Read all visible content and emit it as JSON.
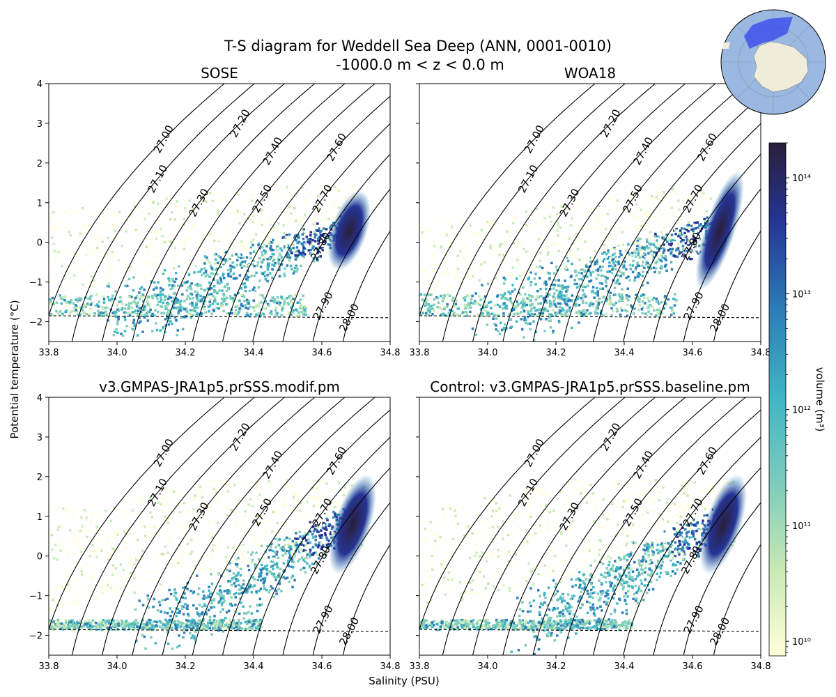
{
  "figure": {
    "title_line1": "T-S diagram for Weddell Sea Deep (ANN, 0001-0010)",
    "title_line2": "-1000.0 m < z < 0.0 m",
    "xlabel": "Salinity (PSU)",
    "ylabel": "Potential temperature (°C)",
    "colorbar_label": "volume (m³)",
    "colors": {
      "ocean": "#9bb8e0",
      "land": "#efecd9",
      "region": "#3344ee",
      "freezing_line": "#000000",
      "colormap": [
        "#ffffd9",
        "#c7e9b4",
        "#7fcdbb",
        "#41b6c4",
        "#2c7fb8",
        "#253494",
        "#2a1e3a"
      ]
    }
  },
  "chart_data": [
    {
      "type": "heatmap",
      "panel": "top-left",
      "title": "SOSE",
      "xlim": [
        33.8,
        34.8
      ],
      "ylim": [
        -2.5,
        4
      ],
      "x_ticks": [
        "33.8",
        "34.0",
        "34.2",
        "34.4",
        "34.6",
        "34.8"
      ],
      "y_ticks": [
        "−2",
        "−1",
        "0",
        "1",
        "2",
        "3",
        "4"
      ],
      "freezing_temperature": -1.85,
      "density_contours": [
        "27.00",
        "27.10",
        "27.20",
        "27.30",
        "27.40",
        "27.50",
        "27.60",
        "27.70",
        "27.80",
        "27.90",
        "28.00"
      ],
      "volume_peak": {
        "salinity": 34.68,
        "temperature": 0.3
      }
    },
    {
      "type": "heatmap",
      "panel": "top-right",
      "title": "WOA18",
      "xlim": [
        33.8,
        34.8
      ],
      "ylim": [
        -2.5,
        4
      ],
      "x_ticks": [
        "33.8",
        "34.0",
        "34.2",
        "34.4",
        "34.6",
        "34.8"
      ],
      "y_ticks": [
        "−2",
        "−1",
        "0",
        "1",
        "2",
        "3",
        "4"
      ],
      "freezing_temperature": -1.85,
      "density_contours": [
        "27.00",
        "27.10",
        "27.20",
        "27.30",
        "27.40",
        "27.50",
        "27.60",
        "27.70",
        "27.80",
        "27.90",
        "28.00"
      ],
      "volume_peak": {
        "salinity": 34.68,
        "temperature": 0.3
      }
    },
    {
      "type": "heatmap",
      "panel": "bottom-left",
      "title": "v3.GMPAS-JRA1p5.prSSS.modif.pm",
      "xlim": [
        33.8,
        34.8
      ],
      "ylim": [
        -2.5,
        4
      ],
      "x_ticks": [
        "33.8",
        "34.0",
        "34.2",
        "34.4",
        "34.6",
        "34.8"
      ],
      "y_ticks": [
        "−2",
        "−1",
        "0",
        "1",
        "2",
        "3",
        "4"
      ],
      "freezing_temperature": -1.85,
      "density_contours": [
        "27.00",
        "27.10",
        "27.20",
        "27.30",
        "27.40",
        "27.50",
        "27.60",
        "27.70",
        "27.80",
        "27.90",
        "28.00"
      ],
      "volume_peak": {
        "salinity": 34.69,
        "temperature": 0.8
      }
    },
    {
      "type": "heatmap",
      "panel": "bottom-right",
      "title": "Control: v3.GMPAS-JRA1p5.prSSS.baseline.pm",
      "xlim": [
        33.8,
        34.8
      ],
      "ylim": [
        -2.5,
        4
      ],
      "x_ticks": [
        "33.8",
        "34.0",
        "34.2",
        "34.4",
        "34.6",
        "34.8"
      ],
      "y_ticks": [
        "−2",
        "−1",
        "0",
        "1",
        "2",
        "3",
        "4"
      ],
      "freezing_temperature": -1.85,
      "density_contours": [
        "27.00",
        "27.10",
        "27.20",
        "27.30",
        "27.40",
        "27.50",
        "27.60",
        "27.70",
        "27.80",
        "27.90",
        "28.00"
      ],
      "volume_peak": {
        "salinity": 34.69,
        "temperature": 0.8
      }
    }
  ],
  "colorbar": {
    "scale": "log",
    "range": [
      7500000000.0,
      200000000000000.0
    ],
    "ticks": [
      {
        "label": "10¹⁰",
        "value": 10000000000.0
      },
      {
        "label": "10¹¹",
        "value": 100000000000.0
      },
      {
        "label": "10¹²",
        "value": 1000000000000.0
      },
      {
        "label": "10¹³",
        "value": 10000000000000.0
      },
      {
        "label": "10¹⁴",
        "value": 100000000000000.0
      }
    ]
  }
}
